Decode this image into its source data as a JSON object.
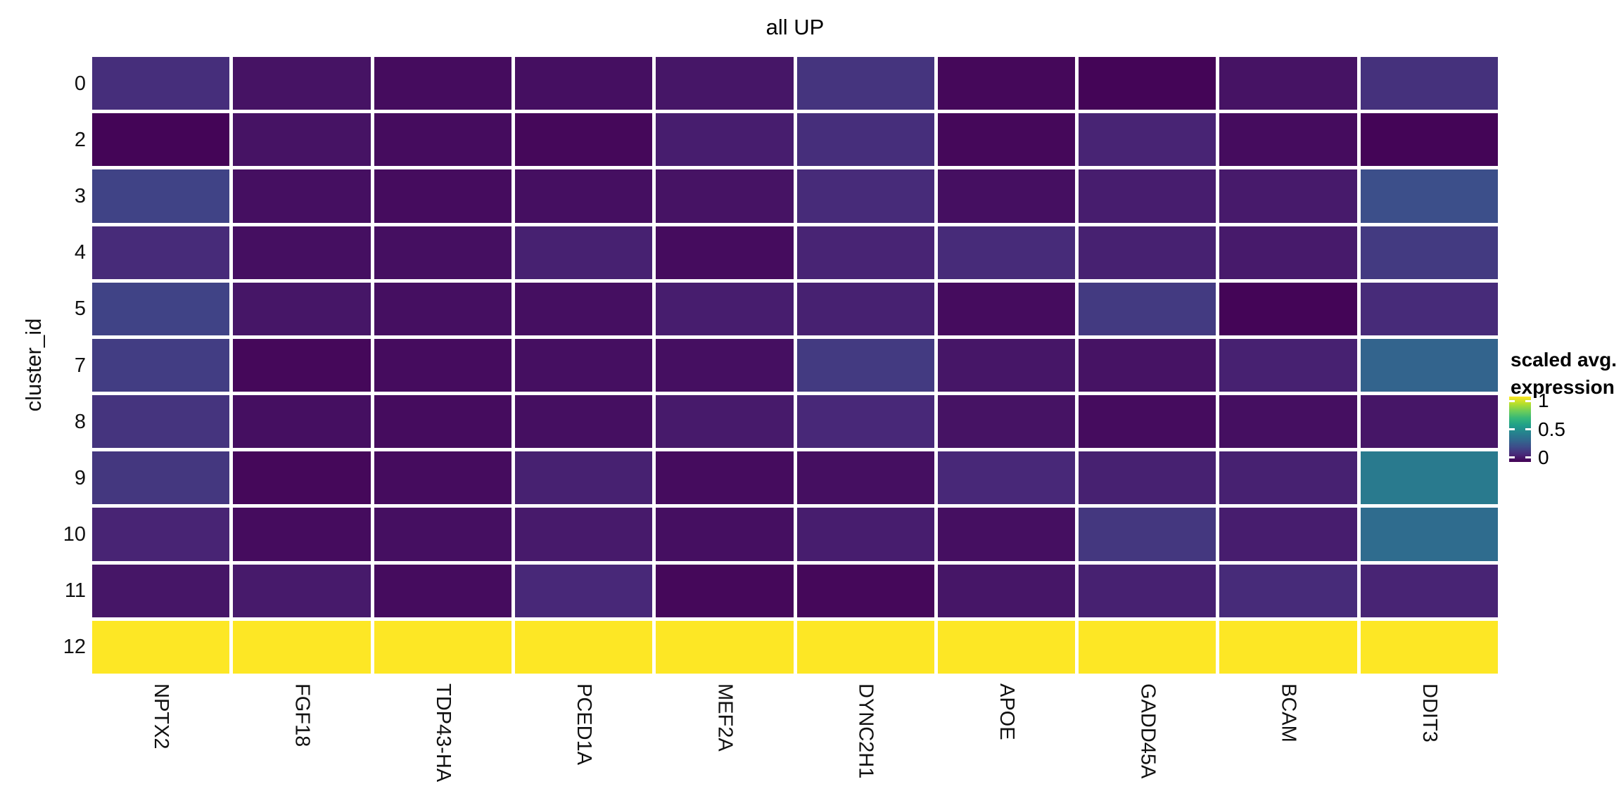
{
  "figure": {
    "title": "all UP",
    "background_color": "#ffffff",
    "gridline_color": "#ffffff"
  },
  "axes": {
    "y_title": "cluster_id",
    "y_tick_labels": [
      "0",
      "2",
      "3",
      "4",
      "5",
      "7",
      "8",
      "9",
      "10",
      "11",
      "12"
    ],
    "x_tick_labels": [
      "NPTX2",
      "FGF18",
      "TDP43-HA",
      "PCED1A",
      "MEF2A",
      "DYNC2H1",
      "APOE",
      "GADD45A",
      "BCAM",
      "DDIT3"
    ]
  },
  "legend": {
    "title_lines": [
      "scaled avg.",
      "expression"
    ],
    "tick_labels": [
      "1",
      "0.5",
      "0"
    ],
    "tick_values": [
      1,
      0.5,
      0
    ]
  },
  "chart_data": {
    "type": "heatmap",
    "title": "all UP",
    "xlabel": "",
    "ylabel": "cluster_id",
    "legend_title": "scaled avg. expression",
    "x_categories": [
      "NPTX2",
      "FGF18",
      "TDP43-HA",
      "PCED1A",
      "MEF2A",
      "DYNC2H1",
      "APOE",
      "GADD45A",
      "BCAM",
      "DDIT3"
    ],
    "y_categories": [
      "0",
      "2",
      "3",
      "4",
      "5",
      "7",
      "8",
      "9",
      "10",
      "11",
      "12"
    ],
    "values": [
      [
        0.13,
        0.05,
        0.03,
        0.04,
        0.06,
        0.15,
        0.02,
        0.01,
        0.05,
        0.14
      ],
      [
        0.01,
        0.05,
        0.03,
        0.02,
        0.08,
        0.13,
        0.02,
        0.1,
        0.03,
        0.01
      ],
      [
        0.2,
        0.04,
        0.03,
        0.04,
        0.05,
        0.12,
        0.04,
        0.08,
        0.07,
        0.24
      ],
      [
        0.12,
        0.04,
        0.04,
        0.09,
        0.03,
        0.1,
        0.12,
        0.09,
        0.07,
        0.17
      ],
      [
        0.2,
        0.06,
        0.04,
        0.04,
        0.08,
        0.09,
        0.03,
        0.17,
        0.01,
        0.12
      ],
      [
        0.18,
        0.02,
        0.03,
        0.04,
        0.04,
        0.17,
        0.06,
        0.05,
        0.09,
        0.32
      ],
      [
        0.15,
        0.04,
        0.03,
        0.04,
        0.07,
        0.11,
        0.05,
        0.03,
        0.04,
        0.06
      ],
      [
        0.16,
        0.02,
        0.03,
        0.09,
        0.03,
        0.04,
        0.11,
        0.09,
        0.09,
        0.41
      ],
      [
        0.1,
        0.03,
        0.04,
        0.07,
        0.04,
        0.08,
        0.04,
        0.16,
        0.08,
        0.35
      ],
      [
        0.06,
        0.07,
        0.03,
        0.11,
        0.02,
        0.02,
        0.06,
        0.09,
        0.12,
        0.1
      ],
      [
        1.0,
        1.0,
        1.0,
        1.0,
        1.0,
        1.0,
        1.0,
        1.0,
        1.0,
        1.0
      ]
    ],
    "value_range": [
      0,
      1
    ],
    "colormap": "viridis",
    "colormap_stops": [
      "#440154",
      "#482878",
      "#3E4A89",
      "#31688E",
      "#26828E",
      "#1F9E89",
      "#35B779",
      "#6DCD59",
      "#B4DE2C",
      "#FDE725"
    ],
    "key_colors": {
      "min": "#440154",
      "mid": "#21908C",
      "max": "#FDE725"
    },
    "legend_position": "right",
    "grid": false
  }
}
